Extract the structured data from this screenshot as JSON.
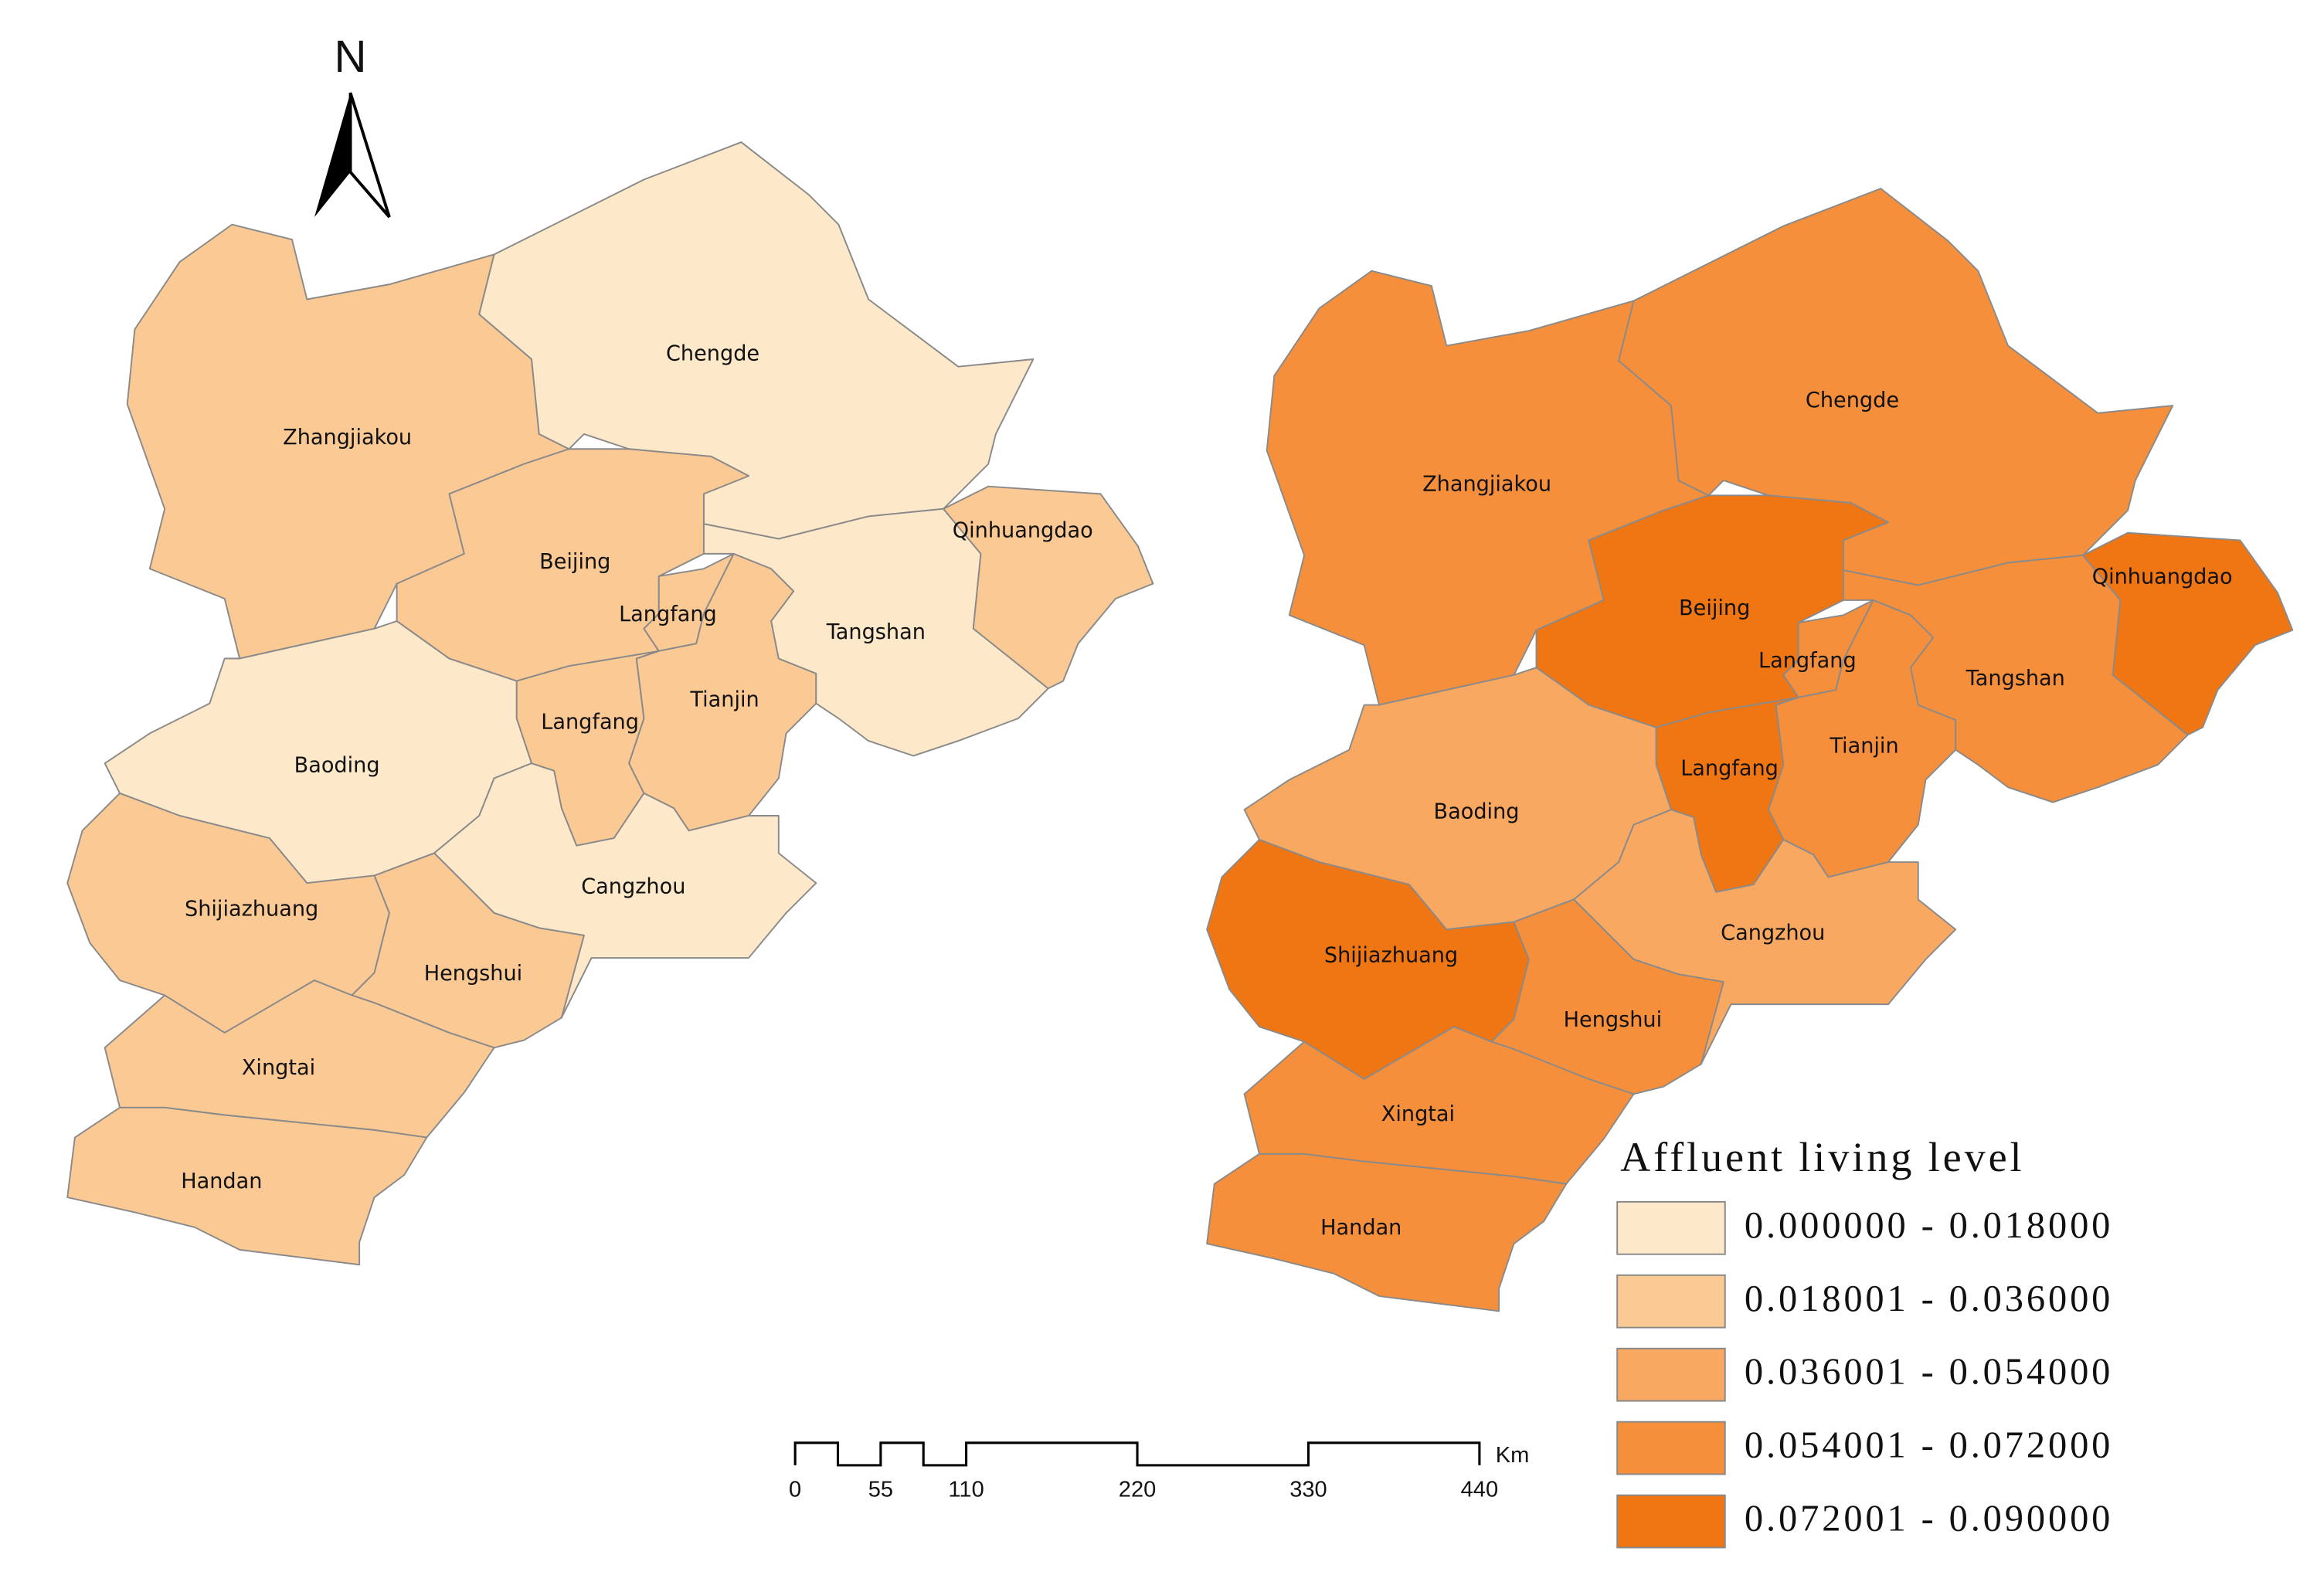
{
  "north": "N",
  "maps": [
    {
      "regions": [
        {
          "name": "Zhangjiakou",
          "color": "#fbc994"
        },
        {
          "name": "Chengde",
          "color": "#fde9c9"
        },
        {
          "name": "Beijing",
          "color": "#fbc994"
        },
        {
          "name": "Langfang",
          "color": "#fbc994"
        },
        {
          "name": "Tianjin",
          "color": "#fbc994"
        },
        {
          "name": "Tangshan",
          "color": "#fde9c9"
        },
        {
          "name": "Qinhuangdao",
          "color": "#fbc994"
        },
        {
          "name": "Langfang",
          "color": "#fbc994"
        },
        {
          "name": "Baoding",
          "color": "#fde9c9"
        },
        {
          "name": "Cangzhou",
          "color": "#fde9c9"
        },
        {
          "name": "Shijiazhuang",
          "color": "#fbc994"
        },
        {
          "name": "Hengshui",
          "color": "#fbc994"
        },
        {
          "name": "Xingtai",
          "color": "#fbc994"
        },
        {
          "name": "Handan",
          "color": "#fbc994"
        }
      ]
    },
    {
      "regions": [
        {
          "name": "Zhangjiakou",
          "color": "#f58f3b"
        },
        {
          "name": "Chengde",
          "color": "#f58f3b"
        },
        {
          "name": "Beijing",
          "color": "#ef7612"
        },
        {
          "name": "Langfang",
          "color": "#f58f3b"
        },
        {
          "name": "Tianjin",
          "color": "#f58f3b"
        },
        {
          "name": "Tangshan",
          "color": "#f58f3b"
        },
        {
          "name": "Qinhuangdao",
          "color": "#ef7612"
        },
        {
          "name": "Langfang",
          "color": "#ef7612"
        },
        {
          "name": "Baoding",
          "color": "#f9a862"
        },
        {
          "name": "Cangzhou",
          "color": "#f9a862"
        },
        {
          "name": "Shijiazhuang",
          "color": "#ef7612"
        },
        {
          "name": "Hengshui",
          "color": "#f58f3b"
        },
        {
          "name": "Xingtai",
          "color": "#f58f3b"
        },
        {
          "name": "Handan",
          "color": "#f58f3b"
        }
      ]
    }
  ],
  "legend": {
    "title": "Affluent living level",
    "items": [
      {
        "label": "0.000000 - 0.018000",
        "color": "#fde9c9"
      },
      {
        "label": "0.018001 - 0.036000",
        "color": "#fbc994"
      },
      {
        "label": "0.036001 - 0.054000",
        "color": "#f9a862"
      },
      {
        "label": "0.054001 - 0.072000",
        "color": "#f58f3b"
      },
      {
        "label": "0.072001 - 0.090000",
        "color": "#ef7612"
      }
    ]
  },
  "scale_bar": {
    "ticks": [
      0,
      55,
      110,
      220,
      330,
      440
    ],
    "unit": "Km"
  }
}
